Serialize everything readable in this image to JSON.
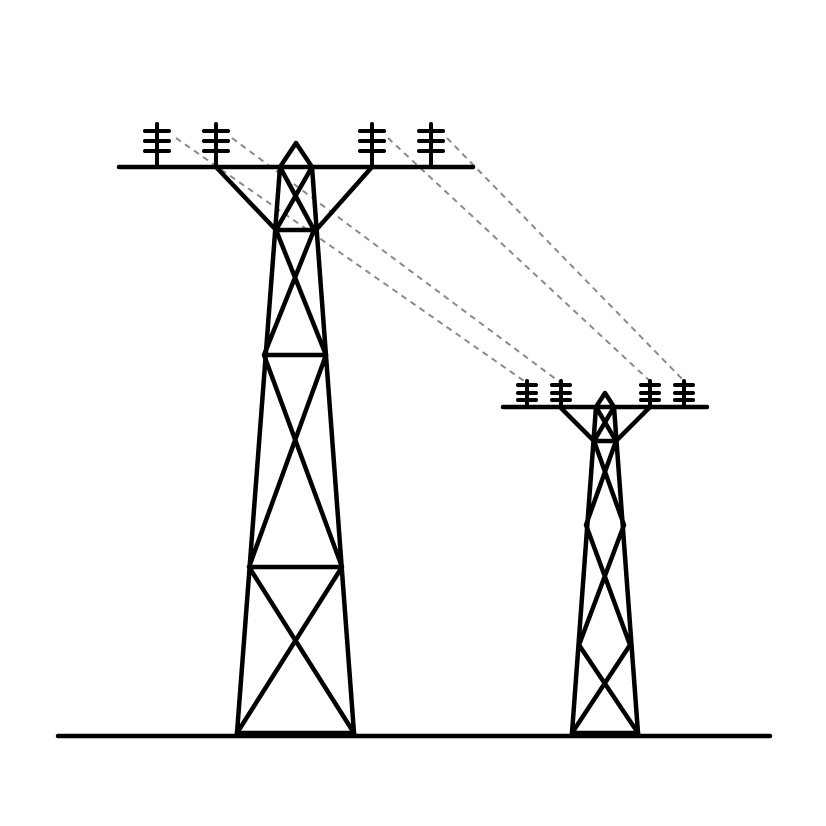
{
  "scene": {
    "background_color": "#ffffff",
    "line_color": "#000000",
    "wire_color": "#8a8a8a",
    "tower_count": 2,
    "insulators_per_tower": 4,
    "wire_count": 4,
    "wire_style": "dashed",
    "ground_line": true,
    "icon": "power-line-tower-icon"
  }
}
